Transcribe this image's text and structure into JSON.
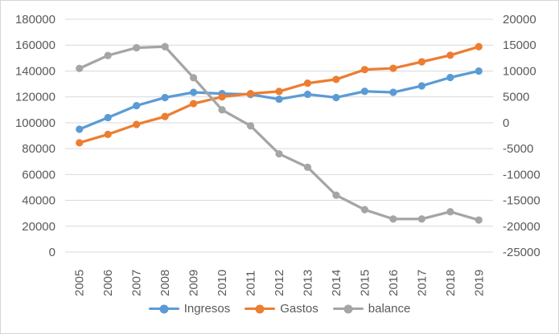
{
  "window": {
    "background": "#ffffff",
    "border_color": "#d3d6da"
  },
  "chart_data": {
    "type": "line",
    "title": "",
    "x": [
      "2005",
      "2006",
      "2007",
      "2008",
      "2009",
      "2010",
      "2011",
      "2012",
      "2013",
      "2014",
      "2015",
      "2016",
      "2017",
      "2018",
      "2019"
    ],
    "series": [
      {
        "name": "Ingresos",
        "axis": "left",
        "color": "#5B9BD5",
        "values": [
          95000,
          104000,
          113200,
          119500,
          123500,
          122500,
          121900,
          118200,
          122000,
          119500,
          124300,
          123500,
          128500,
          135000,
          140000
        ]
      },
      {
        "name": "Gastos",
        "axis": "left",
        "color": "#ED7D31",
        "values": [
          84500,
          91000,
          98700,
          104800,
          114800,
          120000,
          122500,
          124200,
          130600,
          133500,
          141100,
          142100,
          147100,
          152200,
          158800
        ]
      },
      {
        "name": "balance",
        "axis": "right",
        "color": "#A5A5A5",
        "values": [
          10500,
          13000,
          14500,
          14700,
          8700,
          2500,
          -600,
          -6000,
          -8600,
          -14000,
          -16800,
          -18600,
          -18600,
          -17200,
          -18800
        ]
      }
    ],
    "left_axis": {
      "min": 0,
      "max": 180000,
      "step": 20000,
      "tick_labels_top_to_bottom": [
        "180000",
        "160000",
        "140000",
        "120000",
        "100000",
        "80000",
        "60000",
        "40000",
        "20000",
        "0"
      ]
    },
    "right_axis": {
      "min": -25000,
      "max": 20000,
      "step": 5000,
      "tick_labels_top_to_bottom": [
        "20000",
        "15000",
        "10000",
        "5000",
        "0",
        "-5000",
        "-10000",
        "-15000",
        "-20000",
        "-25000"
      ]
    },
    "grid": true,
    "gridline_color": "#D9D9D9",
    "tick_label_color": "#595959",
    "legend_position": "bottom",
    "legend": [
      "Ingresos",
      "Gastos",
      "balance"
    ]
  }
}
